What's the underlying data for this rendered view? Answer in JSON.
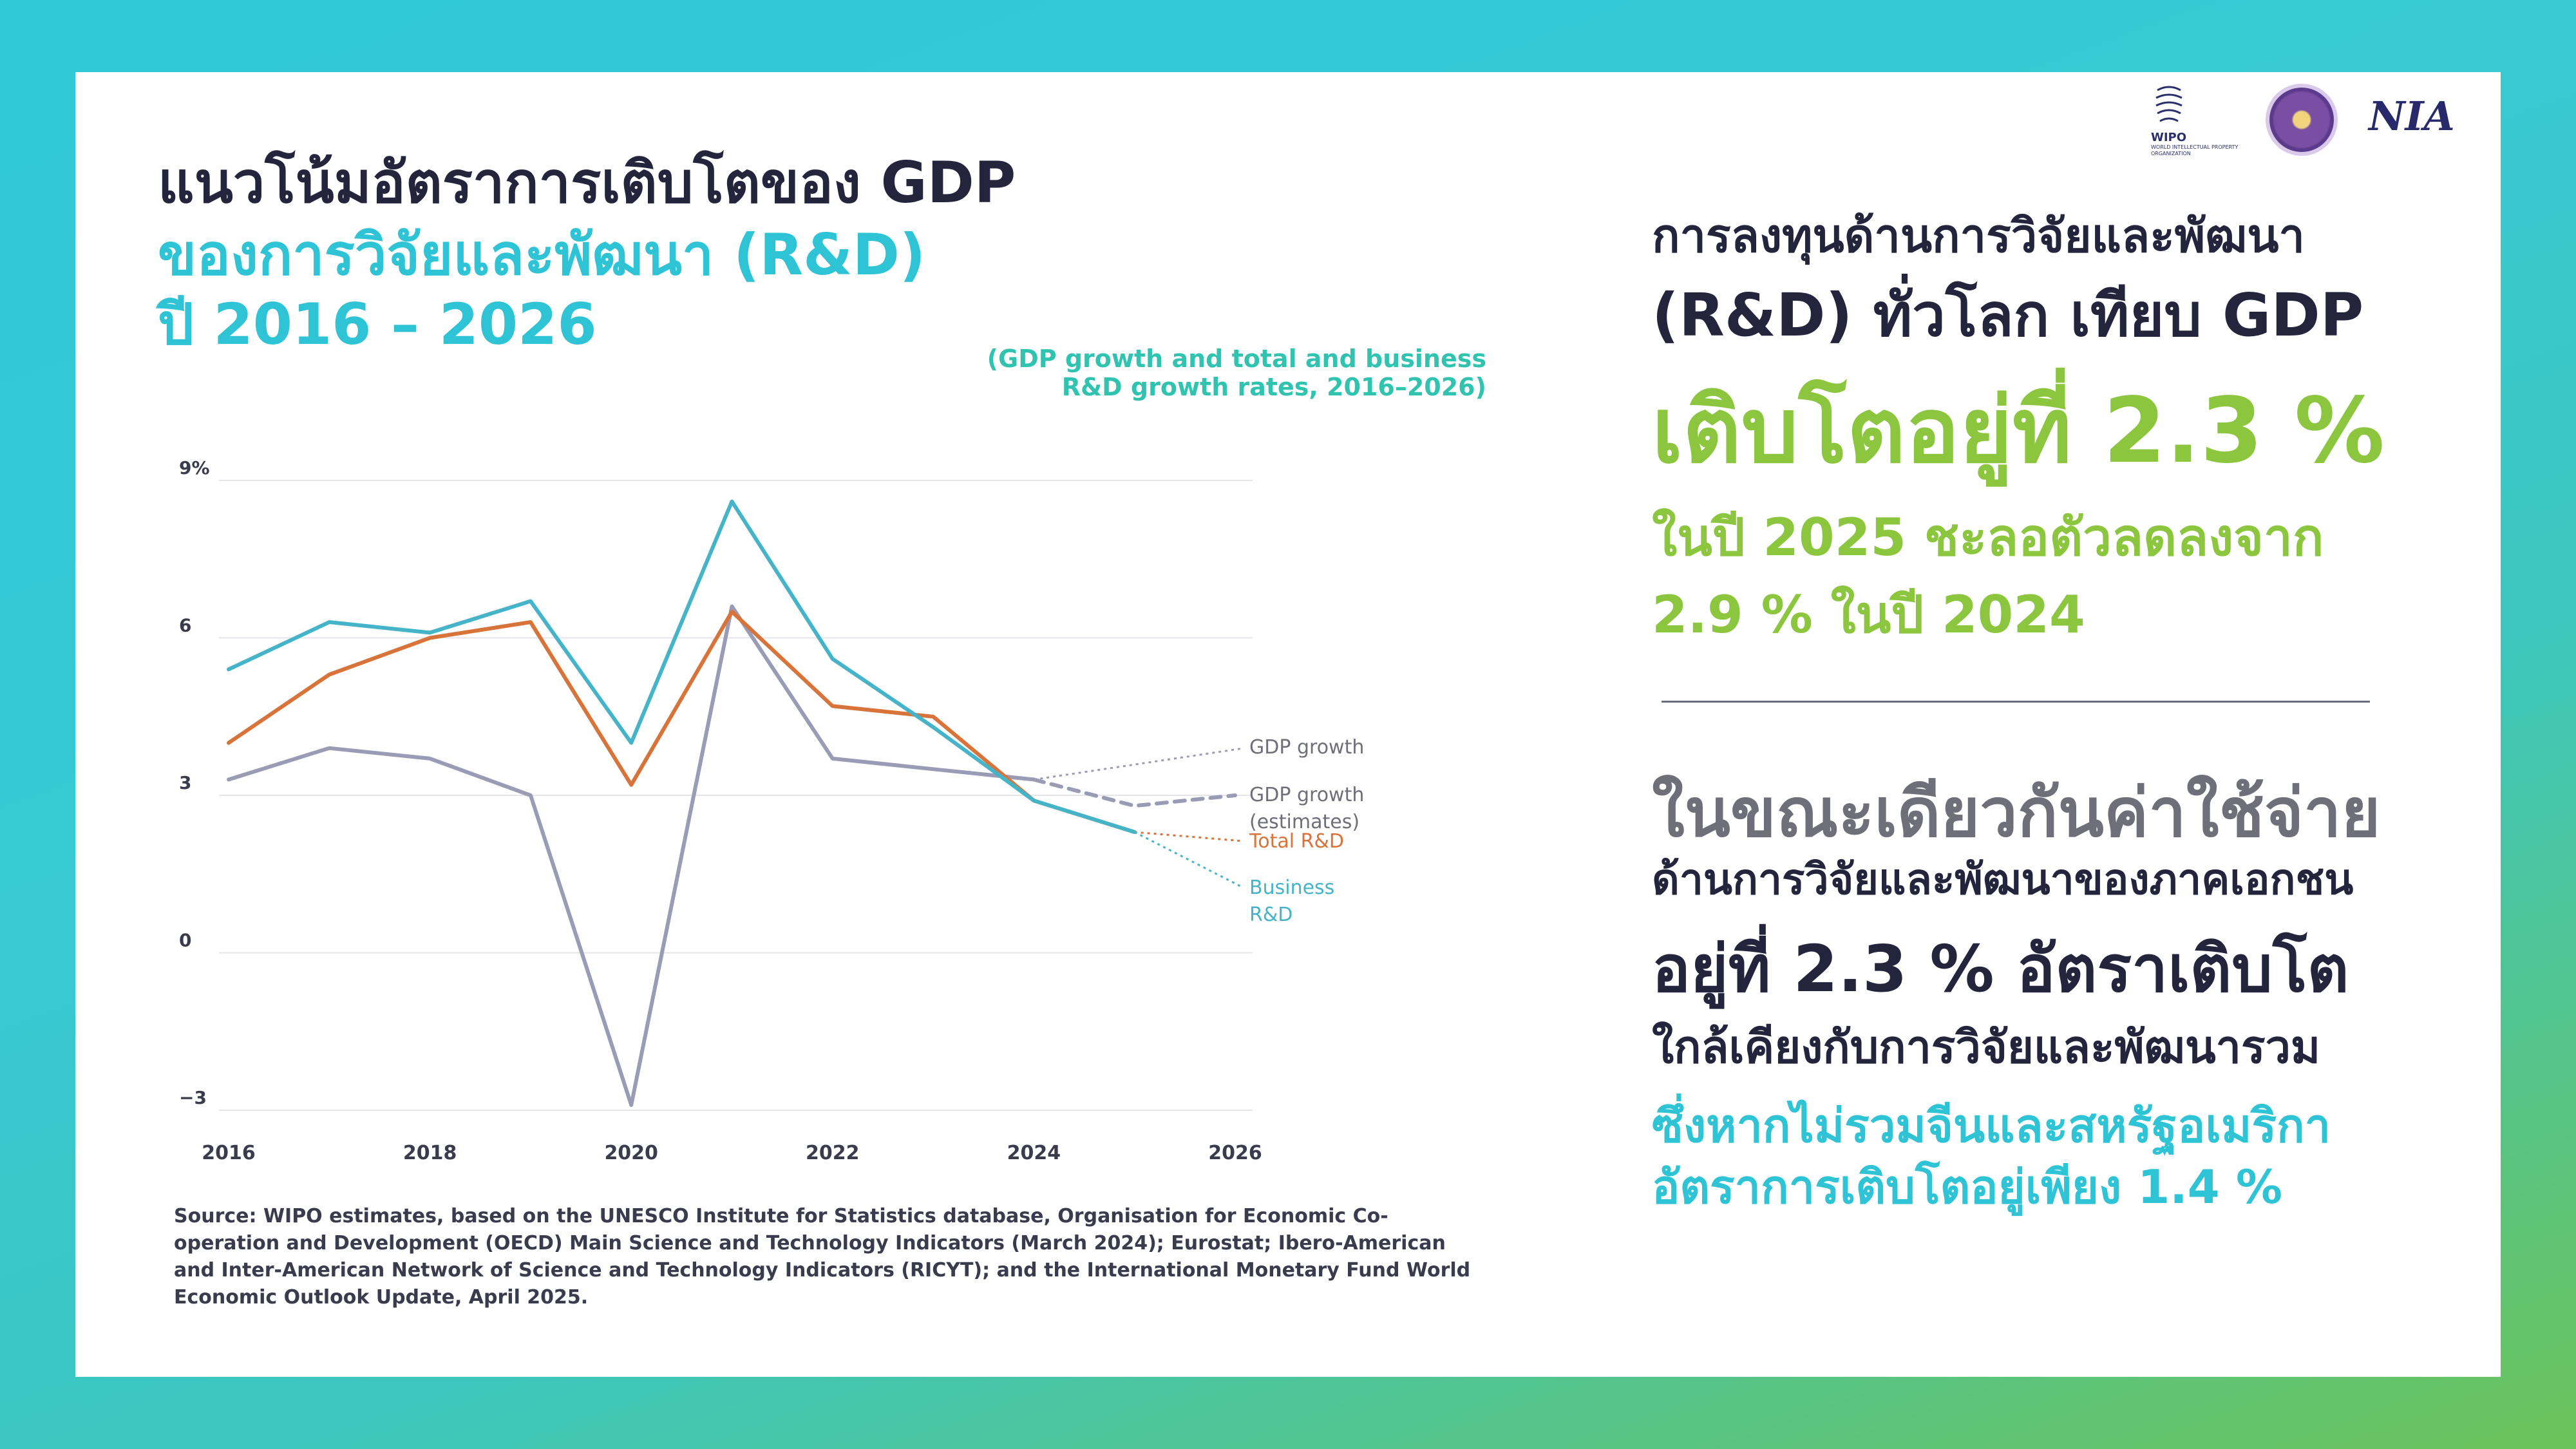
{
  "title": {
    "line1": "แนวโน้มอัตราการเติบโตของ GDP",
    "line2": "ของการวิจัยและพัฒนา (R&D)",
    "line3": "ปี 2016 – 2026"
  },
  "chart_data": {
    "type": "line",
    "subtitle_line1": "(GDP growth and total and business",
    "subtitle_line2": "R&D growth rates, 2016–2026)",
    "x": [
      2016,
      2017,
      2018,
      2019,
      2020,
      2021,
      2022,
      2023,
      2024,
      2025,
      2026
    ],
    "xticks": [
      2016,
      2018,
      2020,
      2022,
      2024,
      2026
    ],
    "yticks": [
      {
        "value": 9,
        "label": "9%"
      },
      {
        "value": 6,
        "label": "6"
      },
      {
        "value": 3,
        "label": "3"
      },
      {
        "value": 0,
        "label": "0"
      },
      {
        "value": -3,
        "label": "−3"
      }
    ],
    "xlim": [
      2016,
      2026
    ],
    "ylim": [
      -3,
      9
    ],
    "grid": true,
    "series": [
      {
        "name": "GDP growth",
        "color": "#9a9bb5",
        "x": [
          2016,
          2017,
          2018,
          2019,
          2020,
          2021,
          2022,
          2023,
          2024
        ],
        "values": [
          3.3,
          3.9,
          3.7,
          3.0,
          -2.9,
          6.6,
          3.7,
          3.5,
          3.3
        ]
      },
      {
        "name": "GDP growth (estimates)",
        "color": "#9a9bb5",
        "dashed": true,
        "x": [
          2024,
          2025,
          2026
        ],
        "values": [
          3.3,
          2.8,
          3.0
        ]
      },
      {
        "name": "Total R&D",
        "color": "#d8733a",
        "x": [
          2016,
          2017,
          2018,
          2019,
          2020,
          2021,
          2022,
          2023,
          2024,
          2025
        ],
        "values": [
          4.0,
          5.3,
          6.0,
          6.3,
          3.2,
          6.5,
          4.7,
          4.5,
          2.9,
          2.3
        ]
      },
      {
        "name": "Business R&D",
        "color": "#46b4c8",
        "x": [
          2016,
          2017,
          2018,
          2019,
          2020,
          2021,
          2022,
          2023,
          2024,
          2025
        ],
        "values": [
          5.4,
          6.3,
          6.1,
          6.7,
          4.0,
          8.6,
          5.6,
          4.3,
          2.9,
          2.3
        ]
      }
    ],
    "legend": {
      "gdp": "GDP growth",
      "gdp_est_1": "GDP growth",
      "gdp_est_2": "(estimates)",
      "total": "Total R&D",
      "business_1": "Business",
      "business_2": "R&D"
    }
  },
  "source": "Source: WIPO estimates, based on the UNESCO Institute for Statistics database, Organisation for Economic Co-operation and Development (OECD) Main Science and Technology Indicators (March 2024); Eurostat; Ibero-American and Inter-American Network of Science and Technology Indicators (RICYT); and the International Monetary Fund World Economic Outlook Update, April 2025.",
  "logos": {
    "wipo": "WIPO",
    "wipo_sub": "WORLD INTELLECTUAL PROPERTY ORGANIZATION",
    "nia": "NIA"
  },
  "right": {
    "l1": "การลงทุนด้านการวิจัยและพัฒนา",
    "l2": "(R&D) ทั่วโลก เทียบ GDP",
    "l3": "เติบโตอยู่ที่ 2.3 %",
    "l4": "ในปี 2025  ชะลอตัวลดลงจาก",
    "l5": "2.9 % ในปี 2024",
    "l6": "ในขณะเดียวกันค่าใช้จ่าย",
    "l7": "ด้านการวิจัยและพัฒนาของภาคเอกชน",
    "l8": "อยู่ที่ 2.3 % อัตราเติบโต",
    "l9": "ใกล้เคียงกับการวิจัยและพัฒนารวม",
    "l10": "ซึ่งหากไม่รวมจีนและสหรัฐอเมริกา",
    "l11": "อัตราการเติบโตอยู่เพียง 1.4 %"
  },
  "colors": {
    "dark": "#24253d",
    "cyan": "#2fc3d6",
    "green": "#8cc63f",
    "gray": "#6e6f78"
  }
}
